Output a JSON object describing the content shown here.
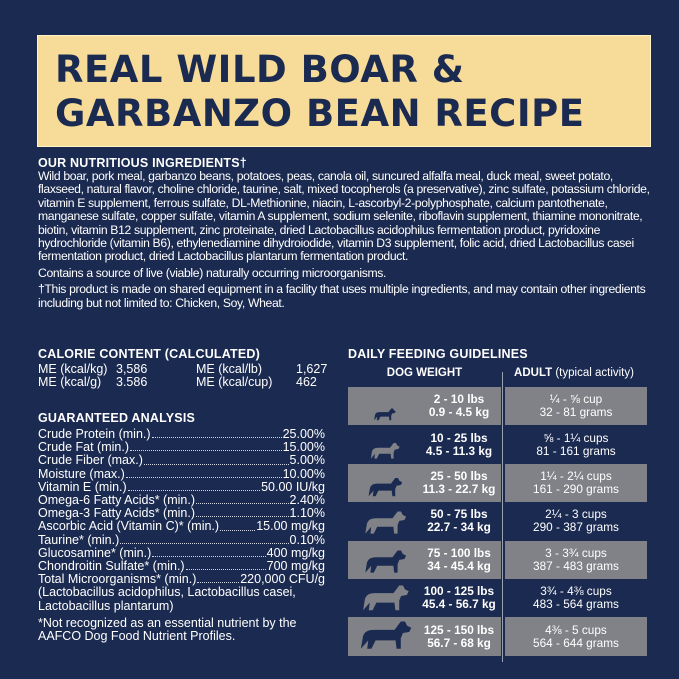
{
  "title": {
    "line1": "REAL WILD BOAR &",
    "line2": "GARBANZO BEAN RECIPE"
  },
  "ingredients": {
    "heading": "OUR NUTRITIOUS INGREDIENTS†",
    "text": "Wild boar, pork meal, garbanzo beans, potatoes, peas, canola oil, suncured alfalfa meal, duck meal, sweet potato, flaxseed, natural flavor, choline chloride, taurine, salt, mixed tocopherols (a preservative), zinc sulfate, potassium chloride, vitamin E supplement, ferrous sulfate, DL-Methionine, niacin, L-ascorbyl-2-polyphosphate, calcium pantothenate, manganese sulfate, copper sulfate, vitamin A supplement, sodium selenite, riboflavin supplement, thiamine mononitrate, biotin, vitamin B12 supplement, zinc proteinate, dried Lactobacillus acidophilus fermentation product, pyridoxine hydrochloride (vitamin B6), ethylenediamine dihydroiodide, vitamin D3 supplement, folic acid, dried Lactobacillus casei fermentation product, dried Lactobacillus plantarum fermentation product.",
    "live": "Contains a source of live (viable) naturally occurring microorganisms.",
    "disclaimer": "†This product is made on shared equipment in a facility that uses multiple ingredients, and may contain other ingredients including but not limited to: Chicken, Soy, Wheat."
  },
  "calorie": {
    "heading": "CALORIE CONTENT (CALCULATED)",
    "items": [
      {
        "label": "ME (kcal/kg)",
        "value": "3,586"
      },
      {
        "label": "ME (kcal/lb)",
        "value": "1,627"
      },
      {
        "label": "ME (kcal/g)",
        "value": "3.586"
      },
      {
        "label": "ME (kcal/cup)",
        "value": "462"
      }
    ]
  },
  "analysis": {
    "heading": "GUARANTEED ANALYSIS",
    "rows": [
      {
        "label": "Crude Protein (min.)",
        "value": "25.00%"
      },
      {
        "label": "Crude Fat (min.)",
        "value": "15.00%"
      },
      {
        "label": "Crude Fiber (max.)",
        "value": "5.00%"
      },
      {
        "label": "Moisture (max.)",
        "value": "10.00%"
      },
      {
        "label": "Vitamin E (min.)",
        "value": "50.00 IU/kg"
      },
      {
        "label": "Omega-6 Fatty Acids* (min.)",
        "value": "2.40%"
      },
      {
        "label": "Omega-3 Fatty Acids* (min.)",
        "value": "1.10%"
      },
      {
        "label": "Ascorbic Acid (Vitamin C)* (min.)",
        "value": "15.00 mg/kg"
      },
      {
        "label": "Taurine* (min.)",
        "value": "0.10%"
      },
      {
        "label": "Glucosamine* (min.)",
        "value": "400 mg/kg"
      },
      {
        "label": "Chondroitin Sulfate* (min.)",
        "value": "700 mg/kg"
      },
      {
        "label": "Total Microorganisms* (min.)",
        "value": "220,000 CFU/g"
      }
    ],
    "organisms": "(Lactobacillus acidophilus, Lactobacillus casei, Lactobacillus plantarum)",
    "note": "*Not recognized as an essential nutrient by the AAFCO Dog Food Nutrient Profiles."
  },
  "feeding": {
    "heading": "DAILY FEEDING GUIDELINES",
    "col1": "DOG WEIGHT",
    "col2_bold": "ADULT",
    "col2_rest": " (typical activity)",
    "rows": [
      {
        "lbs": "2 - 10 lbs",
        "kg": "0.9 - 4.5 kg",
        "cups": "¼ - ⅝ cup",
        "grams": "32 - 81 grams",
        "icon": "tiny-dog-icon"
      },
      {
        "lbs": "10 - 25 lbs",
        "kg": "4.5 - 11.3 kg",
        "cups": "⅝ - 1¼ cups",
        "grams": "81 -  161 grams",
        "icon": "small-dog-icon"
      },
      {
        "lbs": "25 - 50 lbs",
        "kg": "11.3 - 22.7 kg",
        "cups": "1¼ - 2¼ cups",
        "grams": "161 - 290 grams",
        "icon": "medium-dog-icon"
      },
      {
        "lbs": "50 - 75 lbs",
        "kg": "22.7 - 34 kg",
        "cups": "2¼ - 3 cups",
        "grams": "290 - 387 grams",
        "icon": "shepherd-dog-icon"
      },
      {
        "lbs": "75 - 100 lbs",
        "kg": "34 - 45.4 kg",
        "cups": "3 - 3¾ cups",
        "grams": "387 - 483 grams",
        "icon": "great-dane-icon"
      },
      {
        "lbs": "100 - 125 lbs",
        "kg": "45.4 - 56.7 kg",
        "cups": "3¾ - 4⅜ cups",
        "grams": "483 - 564 grams",
        "icon": "large-dog-icon"
      },
      {
        "lbs": "125 - 150 lbs",
        "kg": "56.7 - 68 kg",
        "cups": "4⅜ - 5 cups",
        "grams": "564 - 644 grams",
        "icon": "giant-dog-icon"
      }
    ]
  },
  "colors": {
    "navy": "#1b2a50",
    "yellow": "#f6dc98",
    "gray": "#808287"
  }
}
